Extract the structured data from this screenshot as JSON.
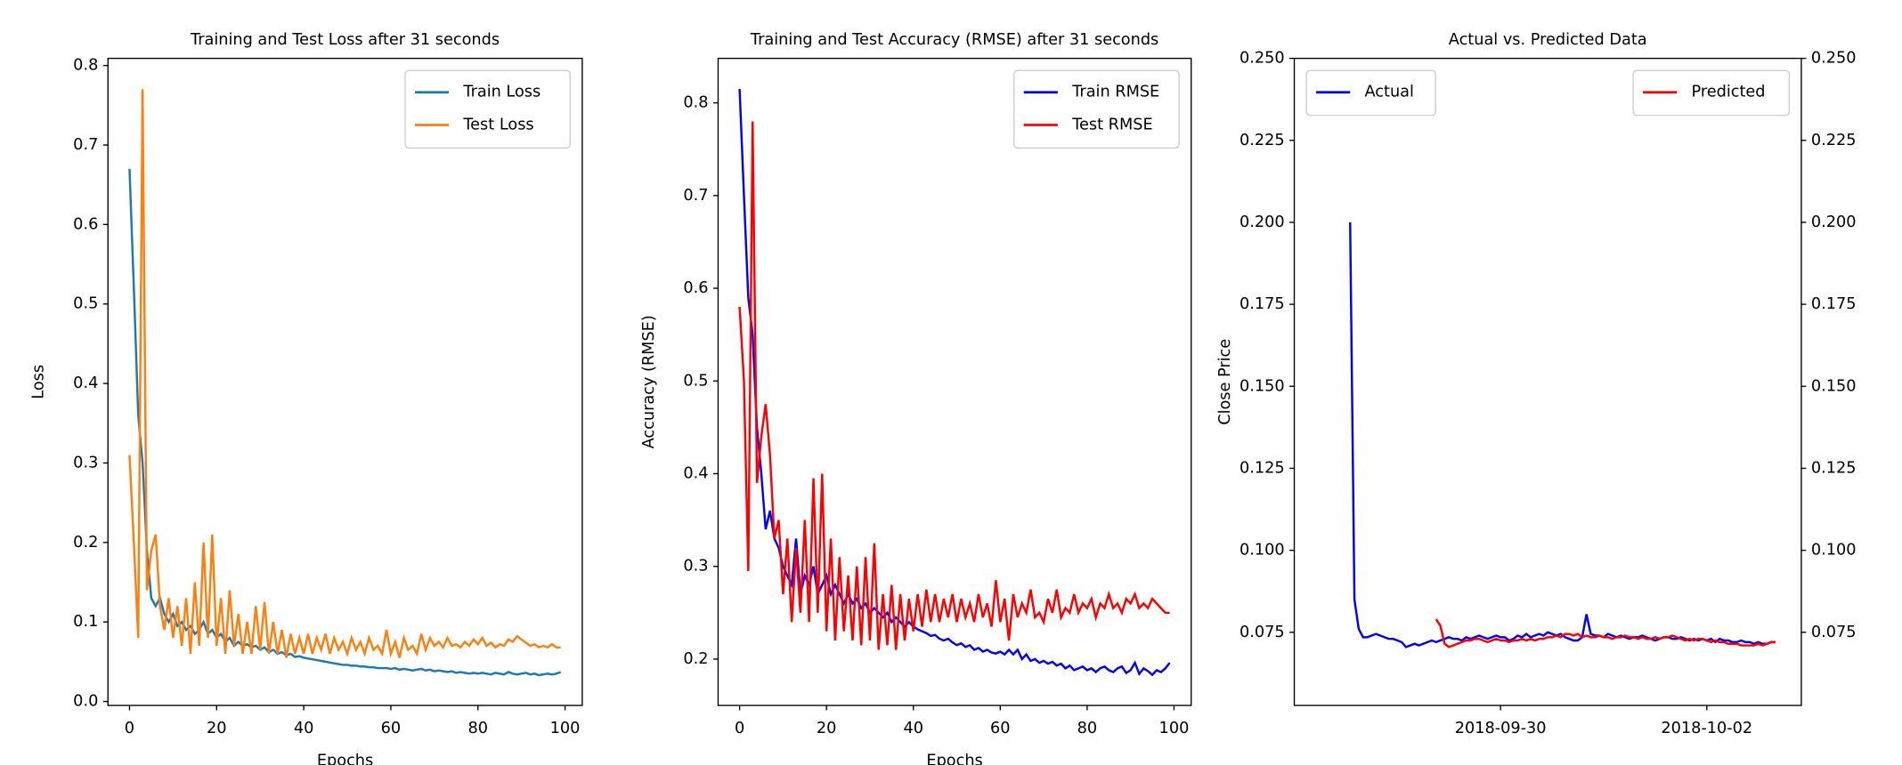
{
  "chart_data": [
    {
      "type": "line",
      "title": "Training and Test Loss after 31 seconds",
      "xlabel": "Epochs",
      "ylabel": "Loss",
      "x": [
        0,
        1,
        2,
        3,
        4,
        5,
        6,
        7,
        8,
        9,
        10,
        11,
        12,
        13,
        14,
        15,
        16,
        17,
        18,
        19,
        20,
        21,
        22,
        23,
        24,
        25,
        26,
        27,
        28,
        29,
        30,
        31,
        32,
        33,
        34,
        35,
        36,
        37,
        38,
        39,
        40,
        41,
        42,
        43,
        44,
        45,
        46,
        47,
        48,
        49,
        50,
        51,
        52,
        53,
        54,
        55,
        56,
        57,
        58,
        59,
        60,
        61,
        62,
        63,
        64,
        65,
        66,
        67,
        68,
        69,
        70,
        71,
        72,
        73,
        74,
        75,
        76,
        77,
        78,
        79,
        80,
        81,
        82,
        83,
        84,
        85,
        86,
        87,
        88,
        89,
        90,
        91,
        92,
        93,
        94,
        95,
        96,
        97,
        98,
        99
      ],
      "series": [
        {
          "name": "Train Loss",
          "color": "#1f77b4",
          "values": [
            0.67,
            0.52,
            0.36,
            0.3,
            0.19,
            0.13,
            0.12,
            0.13,
            0.11,
            0.1,
            0.11,
            0.095,
            0.1,
            0.09,
            0.095,
            0.085,
            0.09,
            0.1,
            0.085,
            0.09,
            0.08,
            0.085,
            0.075,
            0.08,
            0.07,
            0.075,
            0.07,
            0.072,
            0.068,
            0.07,
            0.065,
            0.068,
            0.062,
            0.065,
            0.06,
            0.062,
            0.058,
            0.06,
            0.056,
            0.057,
            0.055,
            0.054,
            0.053,
            0.052,
            0.051,
            0.05,
            0.049,
            0.048,
            0.047,
            0.046,
            0.046,
            0.045,
            0.045,
            0.044,
            0.044,
            0.043,
            0.043,
            0.042,
            0.042,
            0.042,
            0.041,
            0.042,
            0.04,
            0.041,
            0.04,
            0.039,
            0.04,
            0.041,
            0.039,
            0.04,
            0.038,
            0.039,
            0.038,
            0.037,
            0.038,
            0.036,
            0.037,
            0.036,
            0.035,
            0.036,
            0.035,
            0.036,
            0.035,
            0.034,
            0.036,
            0.035,
            0.034,
            0.037,
            0.035,
            0.034,
            0.035,
            0.036,
            0.034,
            0.035,
            0.033,
            0.034,
            0.035,
            0.034,
            0.035,
            0.037
          ]
        },
        {
          "name": "Test Loss",
          "color": "#ff7f0e",
          "values": [
            0.31,
            0.2,
            0.08,
            0.77,
            0.14,
            0.19,
            0.21,
            0.12,
            0.09,
            0.13,
            0.08,
            0.12,
            0.07,
            0.13,
            0.06,
            0.15,
            0.07,
            0.2,
            0.08,
            0.21,
            0.07,
            0.13,
            0.06,
            0.14,
            0.07,
            0.11,
            0.06,
            0.1,
            0.06,
            0.12,
            0.065,
            0.125,
            0.06,
            0.1,
            0.06,
            0.09,
            0.055,
            0.085,
            0.06,
            0.08,
            0.06,
            0.085,
            0.06,
            0.08,
            0.065,
            0.085,
            0.06,
            0.08,
            0.065,
            0.075,
            0.06,
            0.08,
            0.065,
            0.075,
            0.06,
            0.08,
            0.065,
            0.07,
            0.06,
            0.09,
            0.06,
            0.075,
            0.055,
            0.08,
            0.065,
            0.07,
            0.06,
            0.085,
            0.065,
            0.08,
            0.07,
            0.075,
            0.068,
            0.08,
            0.07,
            0.072,
            0.068,
            0.075,
            0.07,
            0.078,
            0.072,
            0.08,
            0.07,
            0.074,
            0.068,
            0.072,
            0.07,
            0.078,
            0.075,
            0.082,
            0.078,
            0.074,
            0.07,
            0.072,
            0.068,
            0.07,
            0.068,
            0.072,
            0.068,
            0.068
          ]
        }
      ],
      "xlim": [
        -4.95,
        103.95
      ],
      "xticks": [
        0,
        20,
        40,
        60,
        80,
        100
      ],
      "ylim": [
        -0.005,
        0.809
      ],
      "yticks": [
        {
          "value": 0,
          "label": "0.0"
        },
        0.1,
        0.2,
        0.3,
        0.4,
        0.5,
        0.6,
        0.7,
        0.8
      ],
      "legend": "upper right"
    },
    {
      "type": "line",
      "title": "Training and Test Accuracy (RMSE) after 31 seconds",
      "xlabel": "Epochs",
      "ylabel": "Accuracy (RMSE)",
      "x": [
        0,
        1,
        2,
        3,
        4,
        5,
        6,
        7,
        8,
        9,
        10,
        11,
        12,
        13,
        14,
        15,
        16,
        17,
        18,
        19,
        20,
        21,
        22,
        23,
        24,
        25,
        26,
        27,
        28,
        29,
        30,
        31,
        32,
        33,
        34,
        35,
        36,
        37,
        38,
        39,
        40,
        41,
        42,
        43,
        44,
        45,
        46,
        47,
        48,
        49,
        50,
        51,
        52,
        53,
        54,
        55,
        56,
        57,
        58,
        59,
        60,
        61,
        62,
        63,
        64,
        65,
        66,
        67,
        68,
        69,
        70,
        71,
        72,
        73,
        74,
        75,
        76,
        77,
        78,
        79,
        80,
        81,
        82,
        83,
        84,
        85,
        86,
        87,
        88,
        89,
        90,
        91,
        92,
        93,
        94,
        95,
        96,
        97,
        98,
        99
      ],
      "series": [
        {
          "name": "Train RMSE",
          "color": "#0000ff",
          "values": [
            0.815,
            0.7,
            0.59,
            0.55,
            0.45,
            0.4,
            0.34,
            0.36,
            0.33,
            0.32,
            0.3,
            0.29,
            0.28,
            0.33,
            0.27,
            0.29,
            0.28,
            0.3,
            0.27,
            0.28,
            0.29,
            0.27,
            0.28,
            0.27,
            0.26,
            0.27,
            0.26,
            0.265,
            0.255,
            0.26,
            0.25,
            0.255,
            0.25,
            0.245,
            0.25,
            0.24,
            0.245,
            0.24,
            0.235,
            0.24,
            0.235,
            0.232,
            0.23,
            0.228,
            0.225,
            0.226,
            0.222,
            0.22,
            0.222,
            0.218,
            0.215,
            0.217,
            0.213,
            0.215,
            0.21,
            0.212,
            0.208,
            0.21,
            0.207,
            0.206,
            0.208,
            0.205,
            0.21,
            0.205,
            0.21,
            0.2,
            0.205,
            0.198,
            0.2,
            0.196,
            0.198,
            0.195,
            0.197,
            0.193,
            0.195,
            0.19,
            0.193,
            0.188,
            0.19,
            0.192,
            0.188,
            0.19,
            0.186,
            0.19,
            0.192,
            0.188,
            0.186,
            0.19,
            0.192,
            0.185,
            0.188,
            0.196,
            0.184,
            0.19,
            0.187,
            0.183,
            0.188,
            0.186,
            0.19,
            0.196
          ]
        },
        {
          "name": "Test RMSE",
          "color": "#ff0000",
          "values": [
            0.58,
            0.5,
            0.295,
            0.78,
            0.39,
            0.44,
            0.475,
            0.42,
            0.33,
            0.35,
            0.27,
            0.33,
            0.24,
            0.32,
            0.25,
            0.35,
            0.24,
            0.395,
            0.25,
            0.4,
            0.23,
            0.33,
            0.22,
            0.31,
            0.23,
            0.29,
            0.22,
            0.3,
            0.215,
            0.31,
            0.22,
            0.325,
            0.21,
            0.27,
            0.215,
            0.28,
            0.21,
            0.27,
            0.22,
            0.265,
            0.23,
            0.27,
            0.235,
            0.275,
            0.24,
            0.27,
            0.24,
            0.265,
            0.245,
            0.27,
            0.24,
            0.265,
            0.245,
            0.26,
            0.24,
            0.27,
            0.245,
            0.26,
            0.235,
            0.285,
            0.24,
            0.265,
            0.22,
            0.27,
            0.245,
            0.26,
            0.25,
            0.275,
            0.245,
            0.25,
            0.24,
            0.265,
            0.25,
            0.275,
            0.245,
            0.255,
            0.25,
            0.27,
            0.25,
            0.26,
            0.255,
            0.265,
            0.245,
            0.26,
            0.255,
            0.27,
            0.255,
            0.26,
            0.25,
            0.265,
            0.26,
            0.27,
            0.255,
            0.26,
            0.255,
            0.265,
            0.26,
            0.255,
            0.25,
            0.25
          ]
        }
      ],
      "xlim": [
        -4.95,
        103.95
      ],
      "xticks": [
        0,
        20,
        40,
        60,
        80,
        100
      ],
      "ylim": [
        0.15,
        0.848
      ],
      "yticks": [
        0.2,
        0.3,
        0.4,
        0.5,
        0.6,
        0.7,
        0.8
      ],
      "legend": "upper right"
    },
    {
      "type": "line",
      "title": "Actual vs. Predicted Data",
      "ylabel": "Close Price",
      "series": [
        {
          "name": "Actual",
          "color": "#0000ff",
          "values": [
            0.2,
            0.085,
            0.076,
            0.0735,
            0.0735,
            0.074,
            0.0745,
            0.074,
            0.0735,
            0.073,
            0.073,
            0.0725,
            0.072,
            0.0705,
            0.071,
            0.0715,
            0.071,
            0.0715,
            0.072,
            0.0725,
            0.072,
            0.0725,
            0.073,
            0.0735,
            0.073,
            0.073,
            0.0725,
            0.0735,
            0.073,
            0.0735,
            0.074,
            0.0735,
            0.073,
            0.0735,
            0.074,
            0.0735,
            0.0735,
            0.0725,
            0.073,
            0.074,
            0.0735,
            0.0745,
            0.0735,
            0.074,
            0.0745,
            0.074,
            0.075,
            0.0745,
            0.074,
            0.0745,
            0.0735,
            0.073,
            0.0725,
            0.0725,
            0.0735,
            0.0805,
            0.0745,
            0.074,
            0.074,
            0.0735,
            0.0745,
            0.074,
            0.0735,
            0.074,
            0.0735,
            0.073,
            0.0735,
            0.0735,
            0.074,
            0.0735,
            0.073,
            0.0725,
            0.073,
            0.0735,
            0.0735,
            0.073,
            0.073,
            0.0735,
            0.073,
            0.0725,
            0.073,
            0.0725,
            0.073,
            0.0725,
            0.073,
            0.072,
            0.073,
            0.0725,
            0.0725,
            0.072,
            0.072,
            0.0725,
            0.072,
            0.072,
            0.0715,
            0.072,
            0.0715,
            0.0715,
            0.072,
            0.072
          ]
        },
        {
          "name": "Predicted",
          "color": "#ff0000",
          "axis": "y2",
          "values": [
            null,
            null,
            null,
            null,
            null,
            null,
            null,
            null,
            null,
            null,
            null,
            null,
            null,
            null,
            null,
            null,
            null,
            null,
            null,
            null,
            0.079,
            0.077,
            0.0715,
            0.0705,
            0.071,
            0.0715,
            0.072,
            0.0725,
            0.0725,
            0.073,
            0.073,
            0.0725,
            0.072,
            0.0725,
            0.073,
            0.0725,
            0.0725,
            0.072,
            0.0725,
            0.0725,
            0.073,
            0.0725,
            0.073,
            0.0725,
            0.073,
            0.073,
            0.0735,
            0.0735,
            0.074,
            0.0735,
            0.0745,
            0.0745,
            0.074,
            0.0745,
            0.0735,
            0.074,
            0.0735,
            0.0735,
            0.074,
            0.0735,
            0.0735,
            0.073,
            0.0735,
            0.0735,
            0.074,
            0.0735,
            0.0735,
            0.073,
            0.0735,
            0.073,
            0.073,
            0.0735,
            0.073,
            0.0735,
            0.0735,
            0.074,
            0.0735,
            0.073,
            0.0725,
            0.073,
            0.0725,
            0.073,
            0.073,
            0.0725,
            0.072,
            0.0725,
            0.072,
            0.072,
            0.0715,
            0.0715,
            0.0715,
            0.071,
            0.071,
            0.071,
            0.071,
            0.0715,
            0.071,
            0.0715,
            0.072,
            0.072
          ]
        }
      ],
      "xlim": [
        -13,
        105
      ],
      "xticks": [
        {
          "value": 35,
          "label": "2018-09-30"
        },
        {
          "value": 83,
          "label": "2018-10-02"
        }
      ],
      "ylim": [
        0.0527,
        0.25
      ],
      "yticks": [
        0.075,
        {
          "value": 0.1,
          "label": "0.100"
        },
        0.125,
        {
          "value": 0.15,
          "label": "0.150"
        },
        0.175,
        {
          "value": 0.2,
          "label": "0.200"
        },
        0.225,
        {
          "value": 0.25,
          "label": "0.250"
        }
      ],
      "y2lim": [
        0.0527,
        0.25
      ],
      "y2ticks": [
        0.075,
        {
          "value": 0.1,
          "label": "0.100"
        },
        0.125,
        {
          "value": 0.15,
          "label": "0.150"
        },
        0.175,
        {
          "value": 0.2,
          "label": "0.200"
        },
        0.225,
        {
          "value": 0.25,
          "label": "0.250"
        }
      ],
      "legend": "upper left",
      "legend2": "upper right"
    }
  ]
}
